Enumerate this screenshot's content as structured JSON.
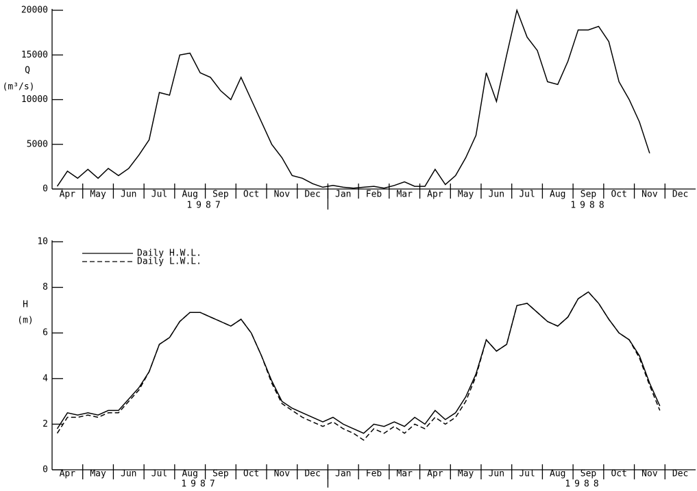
{
  "chart_data": [
    {
      "type": "line",
      "y_label": "Q",
      "y_unit": "(m³/s)",
      "categories": [
        null,
        "Apr",
        null,
        null,
        "May",
        null,
        null,
        "Jun",
        null,
        null,
        "Jul",
        null,
        null,
        "Aug",
        null,
        null,
        "Sep",
        null,
        null,
        "Oct",
        null,
        null,
        "Nov",
        null,
        null,
        "Dec",
        null,
        null,
        "Jan",
        null,
        null,
        "Feb",
        null,
        null,
        "Mar",
        null,
        null,
        "Apr",
        null,
        null,
        "May",
        null,
        null,
        "Jun",
        null,
        null,
        "Jul",
        null,
        null,
        "Aug",
        null,
        null,
        "Sep",
        null,
        null,
        "Oct",
        null,
        null,
        "Nov",
        null,
        null,
        "Dec",
        null
      ],
      "years": [
        "1987",
        "1988"
      ],
      "ylim": [
        0,
        20000
      ],
      "yticks": [
        0,
        5000,
        10000,
        15000,
        20000
      ],
      "series": [
        {
          "color": "#000000",
          "linestyle": "solid",
          "values": [
            300,
            2000,
            1200,
            2200,
            1200,
            2300,
            1500,
            2300,
            3800,
            5500,
            10800,
            10500,
            15000,
            15200,
            13000,
            12500,
            11000,
            10000,
            12500,
            10000,
            7500,
            5000,
            3500,
            1500,
            1200,
            600,
            200,
            400,
            200,
            100,
            200,
            300,
            100,
            400,
            800,
            300,
            300,
            2200,
            500,
            1500,
            3500,
            6000,
            13000,
            9800,
            15000,
            20000,
            17000,
            15500,
            12000,
            11700,
            14300,
            17800,
            17800,
            18200,
            16500,
            12000,
            10000,
            7500,
            4000,
            null,
            null,
            null,
            null
          ]
        }
      ]
    },
    {
      "type": "line",
      "y_label": "H",
      "y_unit": "(m)",
      "categories": [
        null,
        "Apr",
        null,
        null,
        "May",
        null,
        null,
        "Jun",
        null,
        null,
        "Jul",
        null,
        null,
        "Aug",
        null,
        null,
        "Sep",
        null,
        null,
        "Oct",
        null,
        null,
        "Nov",
        null,
        null,
        "Dec",
        null,
        null,
        "Jan",
        null,
        null,
        "Feb",
        null,
        null,
        "Mar",
        null,
        null,
        "Apr",
        null,
        null,
        "May",
        null,
        null,
        "Jun",
        null,
        null,
        "Jul",
        null,
        null,
        "Aug",
        null,
        null,
        "Sep",
        null,
        null,
        "Oct",
        null,
        null,
        "Nov",
        null,
        null,
        "Dec",
        null
      ],
      "years": [
        "1987",
        "1988"
      ],
      "ylim": [
        0,
        10
      ],
      "yticks": [
        0,
        2,
        4,
        6,
        8,
        10
      ],
      "legend": "upper left",
      "series": [
        {
          "name": "Daily H.W.L.",
          "color": "#000000",
          "linestyle": "solid",
          "values": [
            1.8,
            2.5,
            2.4,
            2.5,
            2.4,
            2.6,
            2.6,
            3.1,
            3.6,
            4.3,
            5.5,
            5.8,
            6.5,
            6.9,
            6.9,
            6.7,
            6.5,
            6.3,
            6.6,
            6.0,
            5.0,
            3.9,
            3.0,
            2.7,
            2.5,
            2.3,
            2.1,
            2.3,
            2.0,
            1.8,
            1.6,
            2.0,
            1.9,
            2.1,
            1.9,
            2.3,
            2.0,
            2.6,
            2.2,
            2.5,
            3.2,
            4.2,
            5.7,
            5.2,
            5.5,
            7.2,
            7.3,
            6.9,
            6.5,
            6.3,
            6.7,
            7.5,
            7.8,
            7.3,
            6.6,
            6.0,
            5.7,
            5.0,
            3.8,
            2.8,
            null,
            null,
            null
          ]
        },
        {
          "name": "Daily L.W.L.",
          "color": "#000000",
          "linestyle": "dashed",
          "values": [
            1.6,
            2.3,
            2.3,
            2.4,
            2.3,
            2.5,
            2.5,
            3.0,
            3.5,
            4.3,
            5.5,
            5.8,
            6.5,
            6.9,
            6.9,
            6.7,
            6.5,
            6.3,
            6.6,
            6.0,
            5.0,
            3.8,
            2.9,
            2.6,
            2.3,
            2.1,
            1.9,
            2.1,
            1.8,
            1.6,
            1.3,
            1.8,
            1.6,
            1.9,
            1.6,
            2.0,
            1.8,
            2.3,
            2.0,
            2.3,
            3.0,
            4.1,
            5.7,
            5.2,
            5.5,
            7.2,
            7.3,
            6.9,
            6.5,
            6.3,
            6.7,
            7.5,
            7.8,
            7.3,
            6.6,
            6.0,
            5.7,
            4.9,
            3.7,
            2.6,
            null,
            null,
            null
          ]
        }
      ]
    }
  ]
}
